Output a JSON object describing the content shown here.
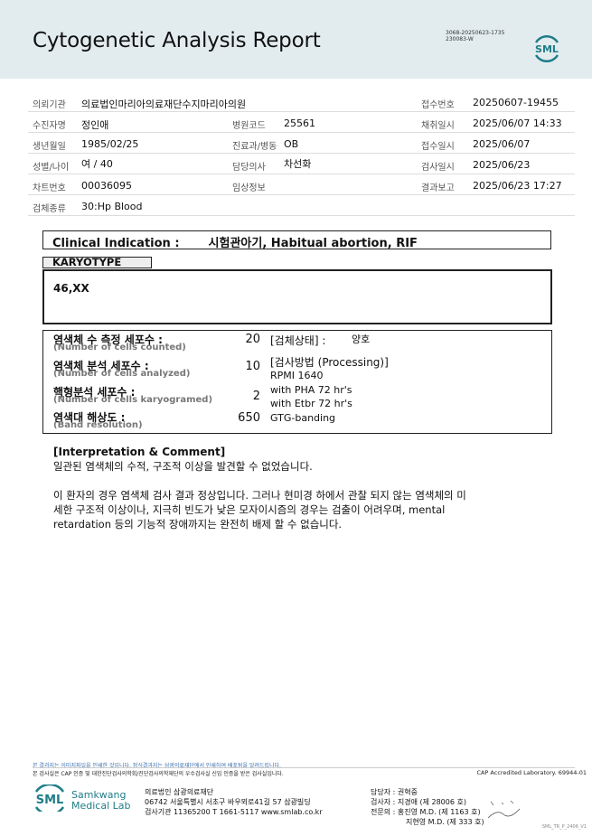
{
  "header": {
    "title": "Cytogenetic Analysis Report",
    "codes": [
      "3068-20250623-1735",
      "230083-W"
    ],
    "logo": "SML"
  },
  "info": {
    "institution_label": "의뢰기관",
    "institution": "의료법인마리아의료재단수지마리아의원",
    "receipt_no_label": "접수번호",
    "receipt_no": "20250607-19455",
    "patient_label": "수진자명",
    "patient": "정인애",
    "hospital_code_label": "병원코드",
    "hospital_code": "25561",
    "collected_label": "채취일시",
    "collected": "2025/06/07 14:33",
    "dob_label": "생년월일",
    "dob": "1985/02/25",
    "dept_label": "진료과/병동",
    "dept": "OB",
    "received_label": "접수일시",
    "received": "2025/06/07",
    "sex_age_label": "성별/나이",
    "sex_age": "여 / 40",
    "doctor_label": "담당의사",
    "doctor": "차선화",
    "tested_label": "검사일시",
    "tested": "2025/06/23",
    "chart_label": "차트번호",
    "chart": "00036095",
    "clinical_label": "임상정보",
    "reported_label": "결과보고",
    "reported": "2025/06/23 17:27",
    "specimen_label": "검체종류",
    "specimen": "30:Hp Blood"
  },
  "clinical": {
    "label": "Clinical Indication :",
    "value": "시험관아기, Habitual abortion, RIF"
  },
  "karyotype": {
    "label": "KARYOTYPE",
    "value": "46,XX"
  },
  "cells": [
    {
      "kr": "염색체 수 측정 세포수 :",
      "en": "(Number of cells counted)",
      "value": "20"
    },
    {
      "kr": "염색체 분석 세포수 :",
      "en": "(Number of cells analyzed)",
      "value": "10"
    },
    {
      "kr": "핵형분석 세포수 :",
      "en": "(Number of cells karyogramed)",
      "value": "2"
    },
    {
      "kr": "염색대 해상도 :",
      "en": "(Band resolution)",
      "value": "650"
    }
  ],
  "specimen_status": {
    "label": "[검체상태] :",
    "value": "양호"
  },
  "processing": {
    "label": "[검사방법 (Processing)]",
    "lines": [
      "RPMI 1640",
      "with PHA 72 hr's",
      "with Etbr 72 hr's",
      "GTG-banding"
    ]
  },
  "interpretation": {
    "heading": "[Interpretation & Comment]",
    "p1": "일관된 염색체의 수적, 구조적 이상을 발견할 수 없었습니다.",
    "p2": "이 환자의 경우 염색체 검사 결과 정상입니다. 그러나 현미경 하에서 관찰 되지 않는 염색체의 미세한 구조적 이상이나, 지극히 빈도가 낮은 모자이시즘의 경우는 검출이 어려우며, mental retardation 등의 기능적 장애까지는 완전히 배제 할 수 없습니다."
  },
  "footer": {
    "notice1": "본 결과지는 이미지파일을 인쇄한 것입니다. 정식결과지는 삼광의료재단에서 인쇄하여 배포됨을 알려드립니다.",
    "notice2": "본 검사실은 CAP 인증 및 대한진단검사의학회/진단검사의학재단의 우수검사실 신임 인증을 받은 검사실입니다.",
    "cap": "CAP Accredited Laboratory. 69944-01",
    "lab_name1": "Samkwang",
    "lab_name2": "Medical Lab",
    "addr1": "의료법인 삼광의료재단",
    "addr2": "06742 서울특별시 서초구 바우뫼로41길 57 삼광빌딩",
    "addr3": "검사기관 11365200 T 1661-5117 www.smlab.co.kr",
    "staff1": "담당자 :  권혁중",
    "staff2": "검사자 :  지경애 (제 28006 호)",
    "staff3": "전문의 :  홍진영 M.D. (제 1163 호)",
    "staff4": "지현영 M.D. (제 333 호)",
    "version": "SML_TR_P_2406_V1"
  },
  "colors": {
    "header_bg": "#e2ecee",
    "brand": "#1f7d88",
    "notice": "#3a6fb0"
  }
}
